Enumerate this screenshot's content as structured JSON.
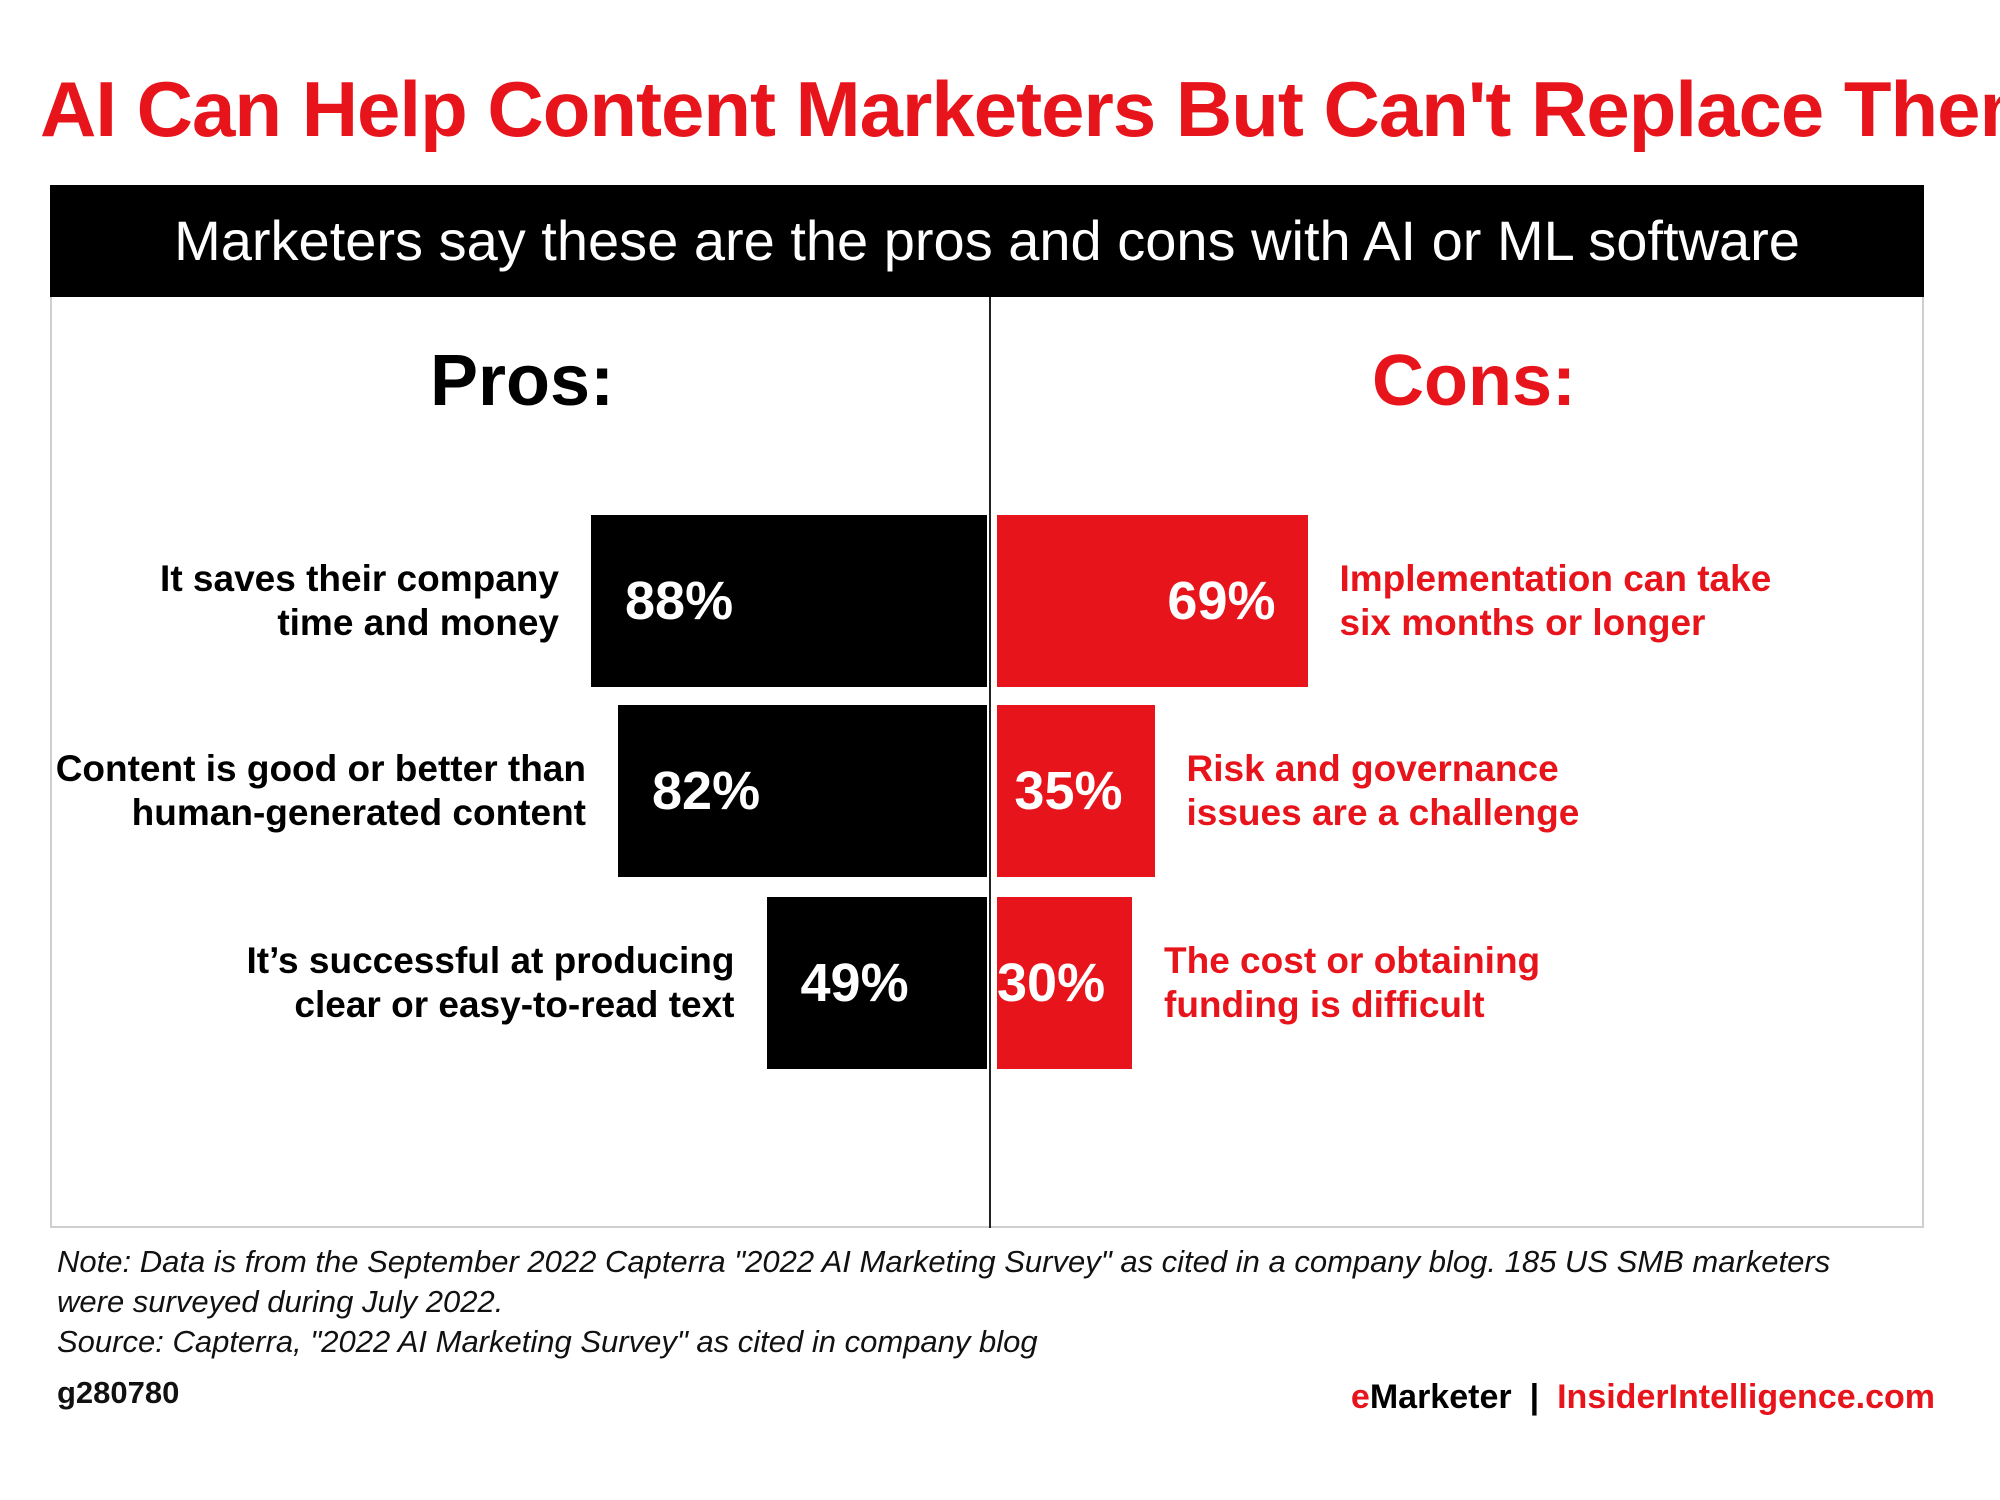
{
  "chart_data": {
    "type": "bar",
    "title": "AI Can Help Content Marketers But Can't Replace Them",
    "subtitle": "Marketers say these are the pros and cons with AI or ML software",
    "unit": "%",
    "xlim": [
      0,
      100
    ],
    "groups": [
      {
        "heading": "Pros:",
        "color": "#000000",
        "direction": "left",
        "items": [
          {
            "label_lines": [
              "It saves their company",
              "time and money"
            ],
            "value": 88,
            "value_label": "88%"
          },
          {
            "label_lines": [
              "Content is good or better than",
              "human-generated content"
            ],
            "value": 82,
            "value_label": "82%"
          },
          {
            "label_lines": [
              "It’s successful at producing",
              "clear or easy-to-read text"
            ],
            "value": 49,
            "value_label": "49%"
          }
        ]
      },
      {
        "heading": "Cons:",
        "color": "#e8141b",
        "direction": "right",
        "items": [
          {
            "label_lines": [
              "Implementation can take",
              "six months or longer"
            ],
            "value": 69,
            "value_label": "69%"
          },
          {
            "label_lines": [
              "Risk and governance",
              "issues are a challenge"
            ],
            "value": 35,
            "value_label": "35%"
          },
          {
            "label_lines": [
              "The cost or obtaining",
              "funding is difficult"
            ],
            "value": 30,
            "value_label": "30%"
          }
        ]
      }
    ]
  },
  "footer": {
    "note_lines": [
      "Note: Data is from the September 2022 Capterra \"2022 AI Marketing Survey\" as cited in a company blog. 185 US SMB marketers",
      "were surveyed during July 2022."
    ],
    "source": "Source: Capterra, \"2022 AI Marketing Survey\" as cited in company blog",
    "chart_id": "g280780",
    "brand_e": "e",
    "brand_rest": "Marketer",
    "brand_separator": "|",
    "brand_site": "InsiderIntelligence.com"
  },
  "colors": {
    "accent_red": "#e8141b",
    "black": "#000000"
  }
}
